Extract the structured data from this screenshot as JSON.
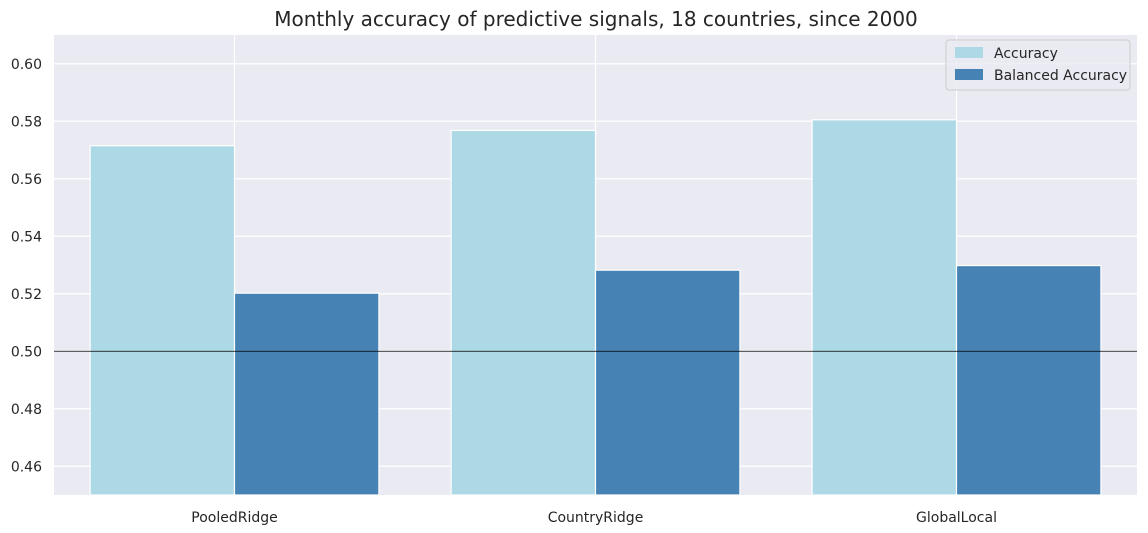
{
  "chart_data": {
    "type": "bar",
    "title": "Monthly accuracy of predictive signals, 18 countries, since 2000",
    "categories": [
      "PooledRidge",
      "CountryRidge",
      "GlobalLocal"
    ],
    "series": [
      {
        "name": "Accuracy",
        "color": "#add8e6",
        "values": [
          0.5715,
          0.5768,
          0.5805
        ]
      },
      {
        "name": "Balanced Accuracy",
        "color": "#4682b4",
        "values": [
          0.5202,
          0.5282,
          0.5298
        ]
      }
    ],
    "ylim": [
      0.45,
      0.61
    ],
    "yticks": [
      "0.46",
      "0.48",
      "0.50",
      "0.52",
      "0.54",
      "0.56",
      "0.58",
      "0.60"
    ],
    "reference_line": 0.5,
    "grid": true,
    "legend_position": "top-right",
    "background_color": "#eaeaf2"
  }
}
